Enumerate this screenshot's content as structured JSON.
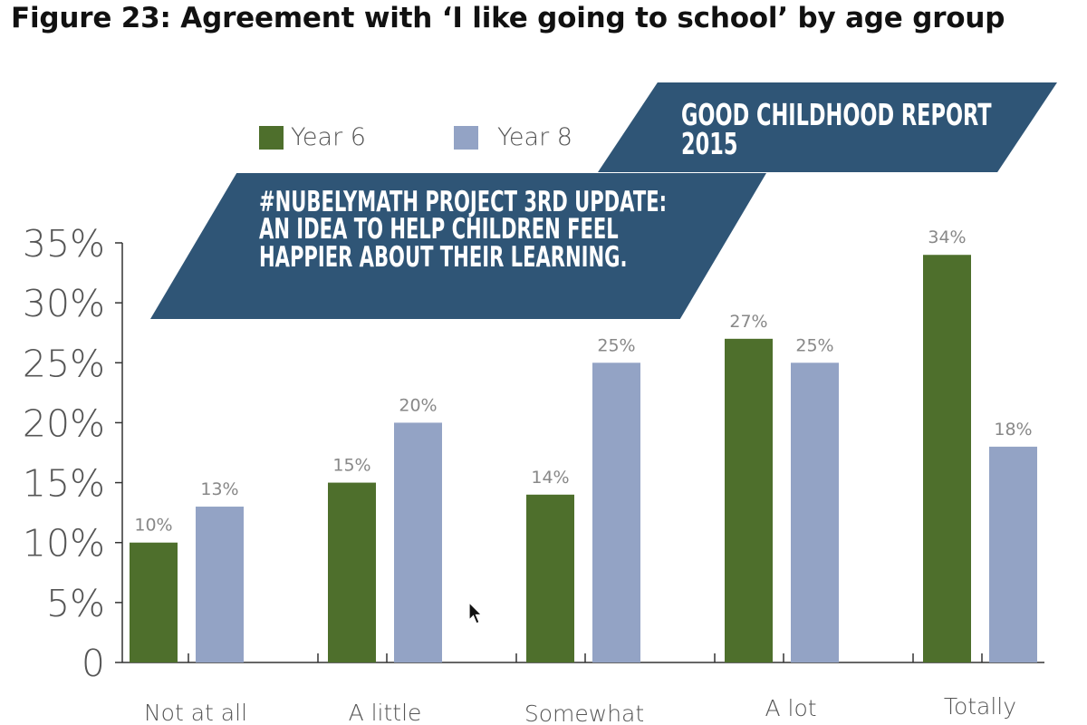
{
  "figure": {
    "title": "Figure 23: Agreement with ‘I like going to school’ by age group"
  },
  "banners": {
    "top": "GOOD CHILDHOOD REPORT 2015",
    "main": "#NUBELYMATH PROJECT 3RD UPDATE: AN IDEA TO HELP CHILDREN FEEL HAPPIER ABOUT THEIR LEARNING."
  },
  "colors": {
    "year6": "#4e6f2c",
    "year8": "#93a3c5",
    "banner": "#2f5576",
    "axis": "#333333",
    "tick_label": "#555555",
    "value_label": "#888888"
  },
  "chart_data": {
    "type": "bar",
    "title": "",
    "xlabel": "",
    "ylabel": "",
    "ylim": [
      0,
      35
    ],
    "yticks": [
      0,
      5,
      10,
      15,
      20,
      25,
      30,
      35
    ],
    "ytick_labels": [
      "0",
      "5%",
      "10%",
      "15%",
      "20%",
      "25%",
      "30%",
      "35%"
    ],
    "categories": [
      "Not at all",
      "A little",
      "Somewhat",
      "A lot",
      "Totally"
    ],
    "series": [
      {
        "name": "Year 6",
        "values": [
          10,
          15,
          14,
          27,
          34
        ],
        "labels": [
          "10%",
          "15%",
          "14%",
          "27%",
          "34%"
        ]
      },
      {
        "name": "Year 8",
        "values": [
          13,
          20,
          25,
          25,
          18
        ],
        "labels": [
          "13%",
          "20%",
          "25%",
          "25%",
          "18%"
        ]
      }
    ],
    "grid": false,
    "legend_position": "top-left"
  }
}
